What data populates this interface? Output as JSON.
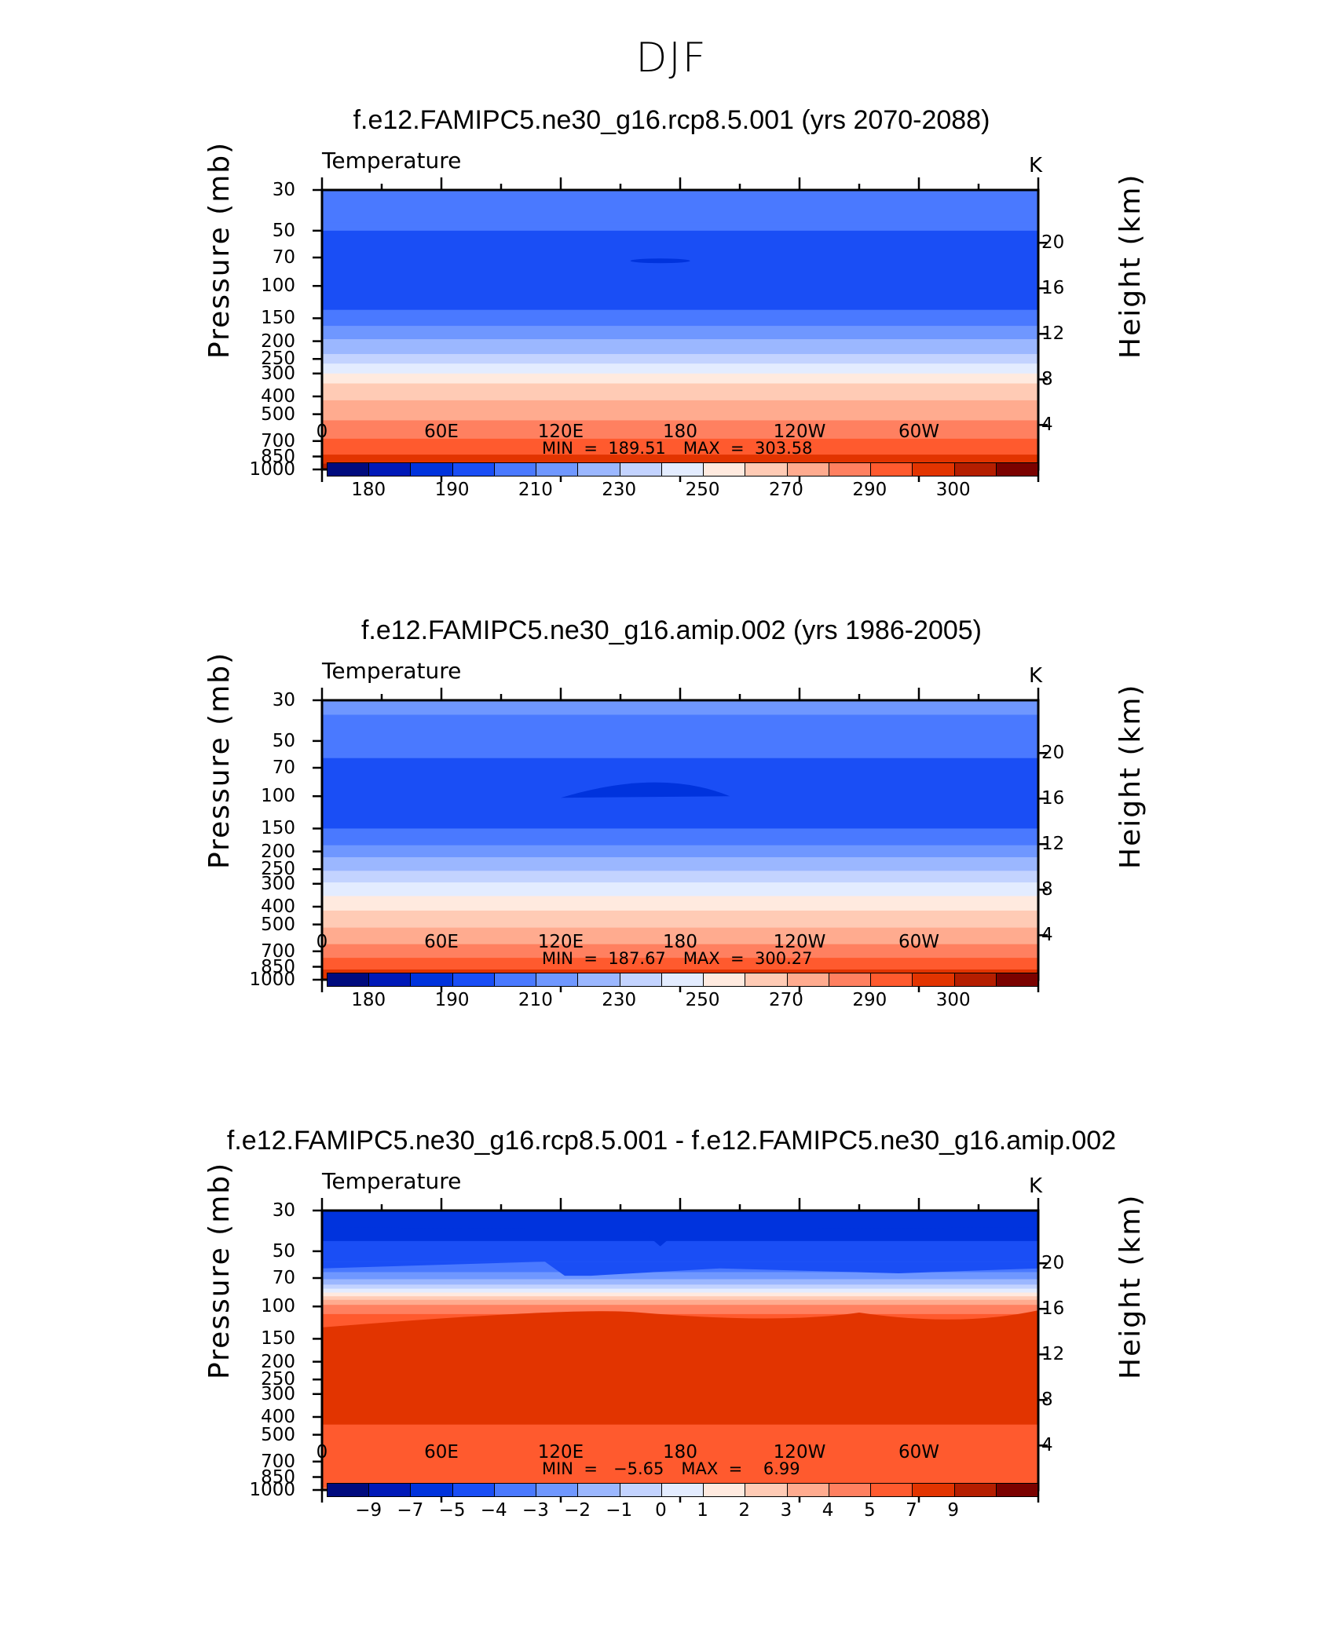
{
  "figure_title": "DJF",
  "colors": {
    "temp_levels": [
      "#000b7e",
      "#0019b8",
      "#0033dd",
      "#1a4ef5",
      "#4a79ff",
      "#6f97ff",
      "#9bb7ff",
      "#c3d3ff",
      "#e3ecff",
      "#ffeadf",
      "#ffcbb5",
      "#ffab8f",
      "#ff8060",
      "#ff5a2e",
      "#e23400",
      "#b51e00",
      "#7b0200"
    ],
    "diff_levels": [
      "#000b7e",
      "#0019b8",
      "#0033dd",
      "#1a4ef5",
      "#4a79ff",
      "#6f97ff",
      "#9bb7ff",
      "#c3d3ff",
      "#e3ecff",
      "#ffeadf",
      "#ffcbb5",
      "#ffab8f",
      "#ff8060",
      "#ff5a2e",
      "#e23400",
      "#b51e00",
      "#7b0200"
    ],
    "topography": "#000000"
  },
  "chart_data": [
    {
      "type": "heatmap",
      "title": "f.e12.FAMIPC5.ne30_g16.rcp8.5.001 (yrs 2070-2088)",
      "variable": "Temperature",
      "units": "K",
      "ylabel": "Pressure (mb)",
      "ylabel_right": "Height (km)",
      "x_ticks": [
        "0",
        "60E",
        "120E",
        "180",
        "120W",
        "60W"
      ],
      "y_ticks": [
        "30",
        "50",
        "70",
        "100",
        "150",
        "200",
        "250",
        "300",
        "400",
        "500",
        "700",
        "850",
        "1000"
      ],
      "y_values": [
        30,
        50,
        70,
        100,
        150,
        200,
        250,
        300,
        400,
        500,
        700,
        850,
        1000
      ],
      "height_ticks": [
        "20",
        "16",
        "12",
        "8",
        "4"
      ],
      "height_values": [
        20,
        16,
        12,
        8,
        4
      ],
      "ylim": [
        1000,
        30
      ],
      "min_label": "MIN  =  189.51",
      "max_label": "MAX  =  303.58",
      "colorbar_labels": [
        "180",
        "190",
        "210",
        "230",
        "250",
        "270",
        "290",
        "300"
      ],
      "profile": [
        {
          "p": 30,
          "level": 4
        },
        {
          "p": 45,
          "level": 4
        },
        {
          "p": 50,
          "level": 3
        },
        {
          "p": 120,
          "level": 3
        },
        {
          "p": 135,
          "level": 4
        },
        {
          "p": 165,
          "level": 5
        },
        {
          "p": 195,
          "level": 6
        },
        {
          "p": 235,
          "level": 7
        },
        {
          "p": 265,
          "level": 8
        },
        {
          "p": 300,
          "level": 9
        },
        {
          "p": 340,
          "level": 10
        },
        {
          "p": 420,
          "level": 11
        },
        {
          "p": 540,
          "level": 12
        },
        {
          "p": 680,
          "level": 13
        },
        {
          "p": 830,
          "level": 14
        },
        {
          "p": 930,
          "level": 15
        },
        {
          "p": 1000,
          "level": 15
        }
      ]
    },
    {
      "type": "heatmap",
      "title": "f.e12.FAMIPC5.ne30_g16.amip.002 (yrs 1986-2005)",
      "variable": "Temperature",
      "units": "K",
      "ylabel": "Pressure (mb)",
      "ylabel_right": "Height (km)",
      "x_ticks": [
        "0",
        "60E",
        "120E",
        "180",
        "120W",
        "60W"
      ],
      "y_ticks": [
        "30",
        "50",
        "70",
        "100",
        "150",
        "200",
        "250",
        "300",
        "400",
        "500",
        "700",
        "850",
        "1000"
      ],
      "y_values": [
        30,
        50,
        70,
        100,
        150,
        200,
        250,
        300,
        400,
        500,
        700,
        850,
        1000
      ],
      "height_ticks": [
        "20",
        "16",
        "12",
        "8",
        "4"
      ],
      "height_values": [
        20,
        16,
        12,
        8,
        4
      ],
      "ylim": [
        1000,
        30
      ],
      "min_label": "MIN  =  187.67",
      "max_label": "MAX  =  300.27",
      "colorbar_labels": [
        "180",
        "190",
        "210",
        "230",
        "250",
        "270",
        "290",
        "300"
      ],
      "profile": [
        {
          "p": 30,
          "level": 5
        },
        {
          "p": 33,
          "level": 5
        },
        {
          "p": 36,
          "level": 4
        },
        {
          "p": 58,
          "level": 4
        },
        {
          "p": 62,
          "level": 3
        },
        {
          "p": 138,
          "level": 3
        },
        {
          "p": 150,
          "level": 4
        },
        {
          "p": 185,
          "level": 5
        },
        {
          "p": 215,
          "level": 6
        },
        {
          "p": 255,
          "level": 7
        },
        {
          "p": 295,
          "level": 8
        },
        {
          "p": 350,
          "level": 9
        },
        {
          "p": 420,
          "level": 10
        },
        {
          "p": 520,
          "level": 11
        },
        {
          "p": 640,
          "level": 12
        },
        {
          "p": 760,
          "level": 13
        },
        {
          "p": 880,
          "level": 14
        },
        {
          "p": 1000,
          "level": 14
        }
      ]
    },
    {
      "type": "heatmap",
      "title": "f.e12.FAMIPC5.ne30_g16.rcp8.5.001 - f.e12.FAMIPC5.ne30_g16.amip.002",
      "variable": "Temperature",
      "units": "K",
      "ylabel": "Pressure (mb)",
      "ylabel_right": "Height (km)",
      "x_ticks": [
        "0",
        "60E",
        "120E",
        "180",
        "120W",
        "60W"
      ],
      "y_ticks": [
        "30",
        "50",
        "70",
        "100",
        "150",
        "200",
        "250",
        "300",
        "400",
        "500",
        "700",
        "850",
        "1000"
      ],
      "y_values": [
        30,
        50,
        70,
        100,
        150,
        200,
        250,
        300,
        400,
        500,
        700,
        850,
        1000
      ],
      "height_ticks": [
        "20",
        "16",
        "12",
        "8",
        "4"
      ],
      "height_values": [
        20,
        16,
        12,
        8,
        4
      ],
      "ylim": [
        1000,
        30
      ],
      "min_label": "MIN  =   −5.65",
      "max_label": "MAX  =    6.99",
      "colorbar_labels": [
        "−9",
        "−7",
        "−5",
        "−4",
        "−3",
        "−2",
        "−1",
        "0",
        "1",
        "2",
        "3",
        "4",
        "5",
        "7",
        "9"
      ],
      "profile": [
        {
          "p": 30,
          "level": 2
        },
        {
          "p": 40,
          "level": 2
        },
        {
          "p": 44,
          "level": 3
        },
        {
          "p": 57,
          "level": 4
        },
        {
          "p": 65,
          "level": 5
        },
        {
          "p": 71,
          "level": 6
        },
        {
          "p": 76,
          "level": 7
        },
        {
          "p": 80,
          "level": 8
        },
        {
          "p": 84,
          "level": 9
        },
        {
          "p": 88,
          "level": 10
        },
        {
          "p": 92,
          "level": 11
        },
        {
          "p": 98,
          "level": 12
        },
        {
          "p": 110,
          "level": 13
        },
        {
          "p": 130,
          "level": 14
        },
        {
          "p": 400,
          "level": 14
        },
        {
          "p": 440,
          "level": 13
        },
        {
          "p": 940,
          "level": 13
        },
        {
          "p": 970,
          "level": 12
        },
        {
          "p": 1000,
          "level": 12
        }
      ]
    }
  ]
}
